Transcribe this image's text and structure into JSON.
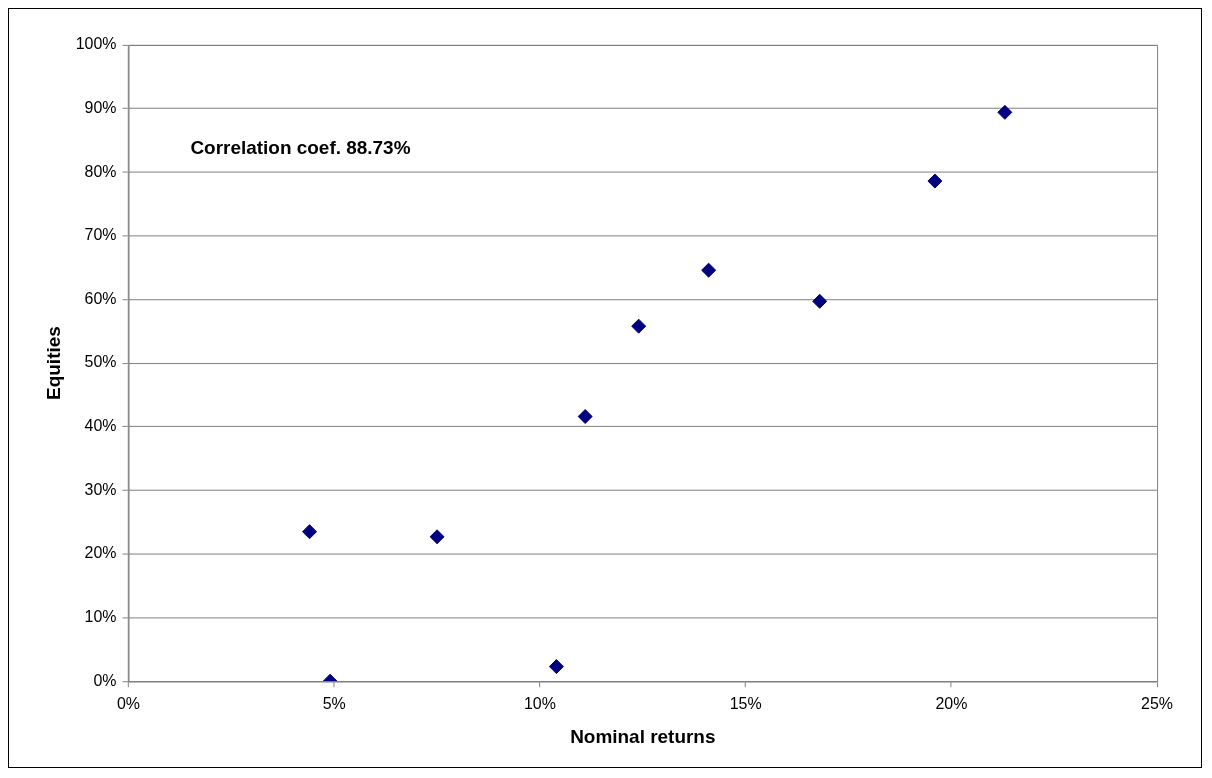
{
  "chart_data": {
    "type": "scatter",
    "xlabel": "Nominal returns",
    "ylabel": "Equities",
    "annotations": [
      "Correlation coef. 88.73%"
    ],
    "series": [
      {
        "color": "#000080",
        "x": [
          4.4,
          4.9,
          7.5,
          10.4,
          11.1,
          12.4,
          14.1,
          16.8,
          19.6,
          21.3
        ],
        "values": [
          23.5,
          0,
          22.7,
          2.3,
          41.6,
          55.8,
          64.6,
          59.7,
          78.6,
          89.4
        ]
      }
    ],
    "xlim": [
      0,
      25
    ],
    "ylim": [
      0,
      100
    ],
    "xticks": [
      {
        "value": 0,
        "label": "0%"
      },
      {
        "value": 5,
        "label": "5%"
      },
      {
        "value": 10,
        "label": "10%"
      },
      {
        "value": 15,
        "label": "15%"
      },
      {
        "value": 20,
        "label": "20%"
      },
      {
        "value": 25,
        "label": "25%"
      }
    ],
    "yticks": [
      {
        "value": 0,
        "label": "0%"
      },
      {
        "value": 10,
        "label": "10%"
      },
      {
        "value": 20,
        "label": "20%"
      },
      {
        "value": 30,
        "label": "30%"
      },
      {
        "value": 40,
        "label": "40%"
      },
      {
        "value": 50,
        "label": "50%"
      },
      {
        "value": 60,
        "label": "60%"
      },
      {
        "value": 70,
        "label": "70%"
      },
      {
        "value": 80,
        "label": "80%"
      },
      {
        "value": 90,
        "label": "90%"
      },
      {
        "value": 100,
        "label": "100%"
      }
    ],
    "grid": "y",
    "legend": false,
    "marker": "diamond"
  }
}
